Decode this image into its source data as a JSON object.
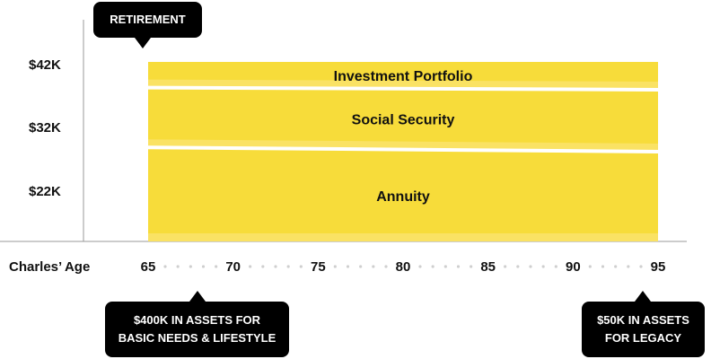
{
  "chart_data": {
    "type": "area",
    "title": "",
    "xlabel": "Charles’ Age",
    "x_ticks": [
      "65",
      "70",
      "75",
      "80",
      "85",
      "90",
      "95"
    ],
    "y_ticks": [
      "$42K",
      "$32K",
      "$22K"
    ],
    "xlim": [
      65,
      95
    ],
    "stacked": true,
    "series": [
      {
        "name": "Annuity",
        "x": [
          65,
          95
        ],
        "values": [
          22,
          21
        ]
      },
      {
        "name": "Social Security",
        "x": [
          65,
          95
        ],
        "values": [
          14,
          14.5
        ]
      },
      {
        "name": "Investment Portfolio",
        "x": [
          65,
          95
        ],
        "values": [
          6,
          6.5
        ]
      }
    ],
    "colors": {
      "band": "#f7dc3a",
      "band_light": "#fae264",
      "separator": "#ffffff",
      "callout": "#000000"
    },
    "annotations": {
      "retirement": "RETIREMENT",
      "assets_line1": "$400K IN ASSETS FOR",
      "assets_line2": "BASIC NEEDS & LIFESTYLE",
      "legacy_line1": "$50K IN ASSETS",
      "legacy_line2": "FOR LEGACY"
    }
  }
}
